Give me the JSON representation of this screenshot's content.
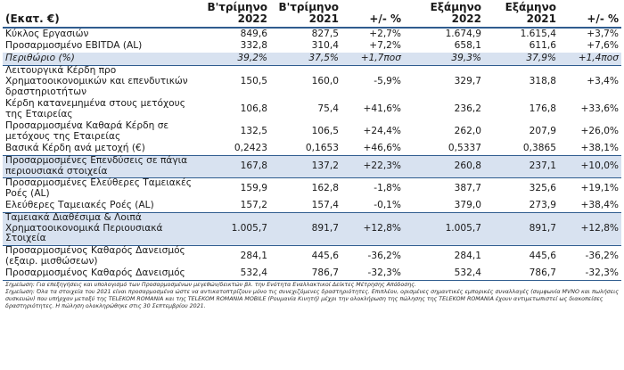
{
  "header": {
    "unit_label": "(Εκατ. €)",
    "columns": [
      {
        "line1": "Β'τρίμηνο",
        "line2": "2022"
      },
      {
        "line1": "Β'τρίμηνο",
        "line2": "2021"
      },
      {
        "line1": "",
        "line2": "+/- %"
      },
      {
        "line1": "Εξάμηνο",
        "line2": "2022"
      },
      {
        "line1": "Εξάμηνο",
        "line2": "2021"
      },
      {
        "line1": "",
        "line2": "+/- %"
      }
    ]
  },
  "rows": [
    {
      "label": "Κύκλος Εργασιών",
      "values": [
        "849,6",
        "827,5",
        "+2,7%",
        "1.674,9",
        "1.615,4",
        "+3,7%"
      ]
    },
    {
      "label": "Προσαρμοσμένο EBITDA (AL)",
      "values": [
        "332,8",
        "310,4",
        "+7,2%",
        "658,1",
        "611,6",
        "+7,6%"
      ]
    },
    {
      "label": "Περιθώριο (%)",
      "values": [
        "39,2%",
        "37,5%",
        "+1,7ποσ",
        "39,3%",
        "37,9%",
        "+1,4ποσ"
      ]
    },
    {
      "label": "Λειτουργικά Κέρδη προ Χρηματοοικονομικών και επενδυτικών δραστηριοτήτων",
      "values": [
        "150,5",
        "160,0",
        "-5,9%",
        "329,7",
        "318,8",
        "+3,4%"
      ]
    },
    {
      "label": "Κέρδη κατανεμημένα στους μετόχους της Εταιρείας",
      "values": [
        "106,8",
        "75,4",
        "+41,6%",
        "236,2",
        "176,8",
        "+33,6%"
      ]
    },
    {
      "label": "Προσαρμοσμένα Καθαρά Κέρδη σε μετόχους της Εταιρείας",
      "values": [
        "132,5",
        "106,5",
        "+24,4%",
        "262,0",
        "207,9",
        "+26,0%"
      ]
    },
    {
      "label": "Βασικά Κέρδη ανά μετοχή (€)",
      "values": [
        "0,2423",
        "0,1653",
        "+46,6%",
        "0,5337",
        "0,3865",
        "+38,1%"
      ]
    },
    {
      "label": "Προσαρμοσμένες Επενδύσεις σε πάγια περιουσιακά στοιχεία",
      "values": [
        "167,8",
        "137,2",
        "+22,3%",
        "260,8",
        "237,1",
        "+10,0%"
      ]
    },
    {
      "label": "Προσαρμοσμένες Ελεύθερες Ταμειακές Ροές (AL)",
      "values": [
        "159,9",
        "162,8",
        "-1,8%",
        "387,7",
        "325,6",
        "+19,1%"
      ]
    },
    {
      "label": "Ελεύθερες Ταμειακές Ροές (AL)",
      "values": [
        "157,2",
        "157,4",
        "-0,1%",
        "379,0",
        "273,9",
        "+38,4%"
      ]
    },
    {
      "label": "Ταμειακά Διαθέσιμα & Λοιπά Χρηματοοικονομικά Περιουσιακά Στοιχεία",
      "values": [
        "1.005,7",
        "891,7",
        "+12,8%",
        "1.005,7",
        "891,7",
        "+12,8%"
      ]
    },
    {
      "label": "Προσαρμοσμένος Καθαρός Δανεισμός (εξαιρ. μισθώσεων)",
      "values": [
        "284,1",
        "445,6",
        "-36,2%",
        "284,1",
        "445,6",
        "-36,2%"
      ]
    },
    {
      "label": "Προσαρμοσμένος Καθαρός Δανεισμός",
      "values": [
        "532,4",
        "786,7",
        "-32,3%",
        "532,4",
        "786,7",
        "-32,3%"
      ]
    }
  ],
  "notes": [
    "Σημείωση: Για επεξηγήσεις και υπολογισμό των Προσαρμοσμένων μεγεθών/δεικτών βλ. την Ενότητα Εναλλακτικοί Δείκτες Μέτρησης Απόδοσης.",
    "Σημείωση: Όλα τα στοιχεία του 2021 είναι προσαρμοσμένα ώστε να αντικατοπτρίζουν μόνο τις συνεχιζόμενες δραστηριότητες. Επιπλέον, ορισμένες σημαντικές εμπορικές συναλλαγές (συμφωνία MVNO και πωλήσεις συσκευών) που υπήρχαν μεταξύ της TELEKOM ROMANIA και της TELEKOM ROMANIA MOBILE (Ρουμανία Κινητή) μέχρι την ολοκλήρωση της πώλησης της TELEKOM ROMANIA έχουν αντιμετωπιστεί ως διακοπείσες δραστηριότητες. Η πώληση ολοκληρώθηκε στις 30 Σεπτεμβρίου 2021."
  ]
}
